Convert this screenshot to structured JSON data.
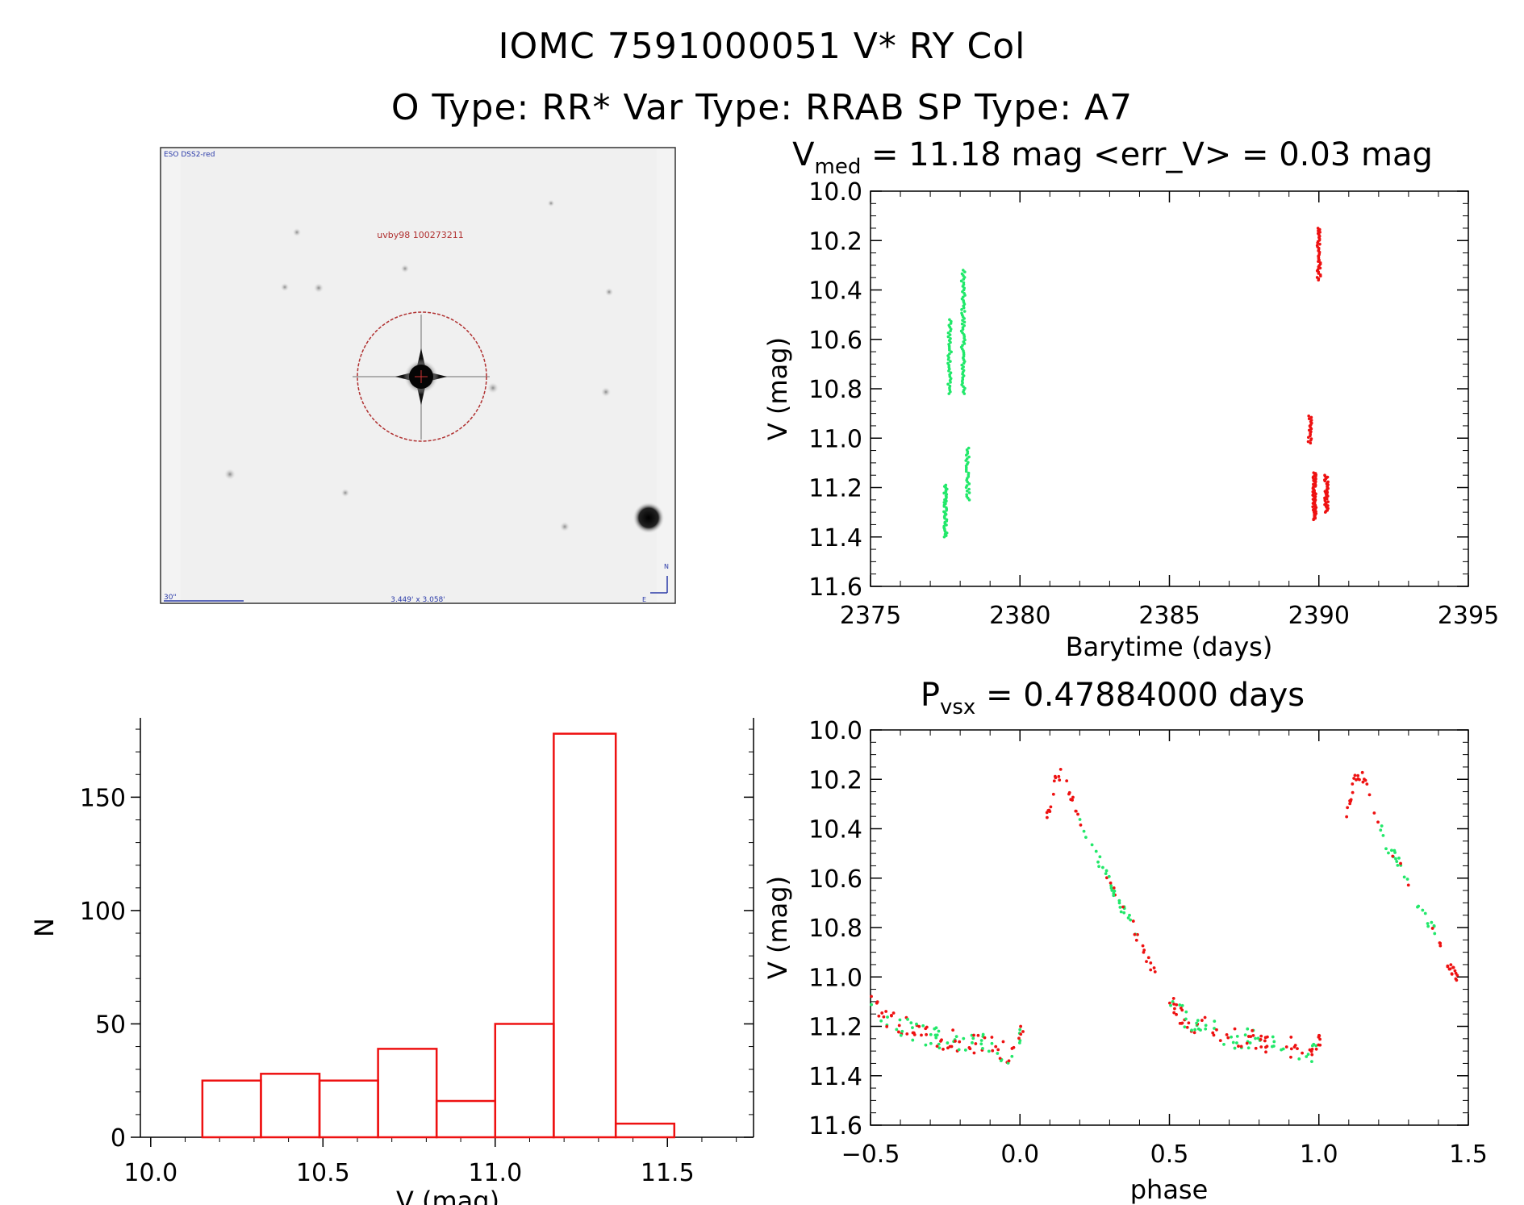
{
  "header": {
    "line1": "IOMC 7591000051    V* RY Col",
    "line2": "O Type: RR*   Var Type: RRAB   SP Type: A7"
  },
  "finder": {
    "survey_label": "ESO DSS2-red",
    "target_label": "uvby98 100273211",
    "scale_label": "30\"",
    "size_label": "3.449' x 3.058'",
    "north_label": "N",
    "east_label": "E"
  },
  "colors": {
    "green": "#22e86a",
    "red": "#ee1111",
    "hist": "#ee1111"
  },
  "chart_data": [
    {
      "id": "lightcurve",
      "type": "scatter",
      "title_main": "V",
      "title_sub": "med",
      "title_rest": " = 11.18 mag <err_V> = 0.03 mag",
      "xlabel": "Barytime (days)",
      "ylabel": "V (mag)",
      "xlim": [
        2375,
        2395
      ],
      "ylim": [
        11.6,
        10.0
      ],
      "xticks": [
        "2375",
        "2380",
        "2385",
        "2390",
        "2395"
      ],
      "yticks": [
        "10.0",
        "10.2",
        "10.4",
        "10.6",
        "10.8",
        "11.0",
        "11.2",
        "11.4",
        "11.6"
      ],
      "series": [
        {
          "name": "green",
          "clusters": [
            {
              "x": 2377.5,
              "ymin": 11.19,
              "ymax": 11.4,
              "n": 40
            },
            {
              "x": 2377.65,
              "ymin": 10.52,
              "ymax": 10.82,
              "n": 40
            },
            {
              "x": 2378.1,
              "ymin": 10.32,
              "ymax": 10.82,
              "n": 70
            },
            {
              "x": 2378.25,
              "ymin": 11.04,
              "ymax": 11.25,
              "n": 30
            }
          ]
        },
        {
          "name": "red",
          "clusters": [
            {
              "x": 2390.0,
              "ymin": 10.15,
              "ymax": 10.36,
              "n": 40
            },
            {
              "x": 2389.7,
              "ymin": 10.91,
              "ymax": 11.02,
              "n": 20
            },
            {
              "x": 2389.85,
              "ymin": 11.14,
              "ymax": 11.33,
              "n": 70
            },
            {
              "x": 2390.25,
              "ymin": 11.15,
              "ymax": 11.3,
              "n": 40
            }
          ]
        }
      ]
    },
    {
      "id": "histogram",
      "type": "bar",
      "xlabel": "V (mag)",
      "ylabel": "N",
      "xlim": [
        9.97,
        11.75
      ],
      "ylim": [
        0,
        185
      ],
      "xticks": [
        "10.0",
        "10.5",
        "11.0",
        "11.5"
      ],
      "yticks": [
        "0",
        "50",
        "100",
        "150"
      ],
      "bin_edges": [
        10.15,
        10.32,
        10.49,
        10.66,
        10.83,
        11.0,
        11.17,
        11.35,
        11.52
      ],
      "values": [
        25,
        28,
        25,
        39,
        16,
        50,
        178,
        6
      ]
    },
    {
      "id": "phased",
      "type": "scatter",
      "title_main": "P",
      "title_sub": "vsx",
      "title_rest": " = 0.47884000 days",
      "period_days": 0.47884,
      "xlabel": "phase",
      "ylabel": "V (mag)",
      "xlim": [
        -0.5,
        1.5
      ],
      "ylim": [
        11.6,
        10.0
      ],
      "xticks": [
        "−0.5",
        "0.0",
        "0.5",
        "1.0",
        "1.5"
      ],
      "yticks": [
        "10.0",
        "10.2",
        "10.4",
        "10.6",
        "10.8",
        "11.0",
        "11.2",
        "11.4",
        "11.6"
      ],
      "curve": [
        [
          -0.5,
          11.12
        ],
        [
          -0.4,
          11.2
        ],
        [
          -0.3,
          11.24
        ],
        [
          -0.2,
          11.26
        ],
        [
          -0.1,
          11.28
        ],
        [
          -0.03,
          11.32
        ],
        [
          0.0,
          11.25
        ],
        [
          0.02,
          11.2
        ]
      ],
      "rise": [
        [
          0.09,
          10.36
        ],
        [
          0.12,
          10.2
        ],
        [
          0.14,
          10.18
        ],
        [
          0.18,
          10.3
        ],
        [
          0.22,
          10.45
        ],
        [
          0.28,
          10.56
        ],
        [
          0.33,
          10.7
        ],
        [
          0.38,
          10.8
        ],
        [
          0.42,
          10.92
        ],
        [
          0.47,
          11.02
        ]
      ]
    }
  ]
}
